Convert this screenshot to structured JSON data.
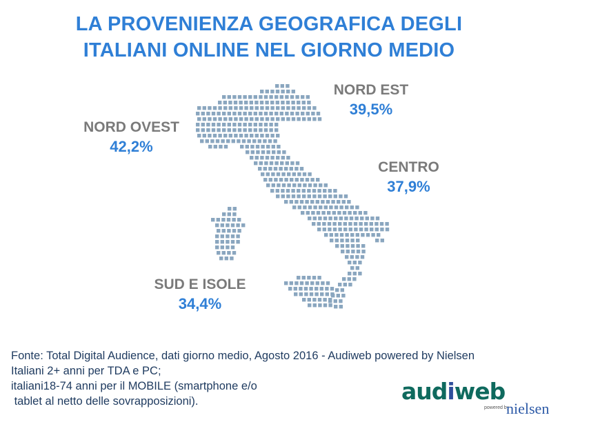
{
  "title": {
    "line1": "LA PROVENIENZA GEOGRAFICA DEGLI",
    "line2": "ITALIANI ONLINE NEL GIORNO MEDIO"
  },
  "regions": {
    "nord_ovest": {
      "name": "NORD OVEST",
      "value": "42,2%"
    },
    "nord_est": {
      "name": "NORD EST",
      "value": "39,5%"
    },
    "centro": {
      "name": "CENTRO",
      "value": "37,9%"
    },
    "sud_isole": {
      "name": "SUD E ISOLE",
      "value": "34,4%"
    }
  },
  "source": {
    "line1": "Fonte: Total Digital Audience, dati giorno medio, Agosto 2016 - Audiweb powered by Nielsen",
    "line2": "Italiani 2+ anni per TDA e PC;",
    "line3": "italiani18-74 anni per il MOBILE (smartphone e/o",
    "line4": " tablet al netto delle sovrapposizioni)."
  },
  "logo": {
    "audi": "aud",
    "i": "i",
    "web": "web",
    "powered": "powered by",
    "nielsen": "nielsen"
  },
  "colors": {
    "title": "#2f7fd6",
    "region_name": "#7a7a7a",
    "percent": "#2f7fd6",
    "map_dot": "#8aa6bf"
  }
}
